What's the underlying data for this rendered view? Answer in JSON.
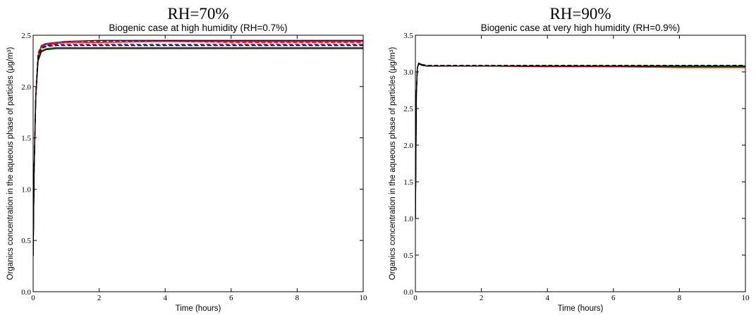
{
  "chart_data": [
    {
      "type": "line",
      "panel_title": "RH=70%",
      "title": "Biogenic case at high humidity (RH=0.7%)",
      "xlabel": "Time (hours)",
      "ylabel": "Organics concentration in the aqueous phase of particles (μg/m³)",
      "xlim": [
        0,
        10
      ],
      "ylim": [
        0,
        2.5
      ],
      "xticks": [
        "0",
        "2",
        "4",
        "6",
        "8",
        "10"
      ],
      "yticks": [
        "0.0",
        "0.5",
        "1.0",
        "1.5",
        "2.0",
        "2.5"
      ],
      "grid": false,
      "series": [
        {
          "color": "#0000cc",
          "dash": "solid",
          "x": [
            0,
            0.03,
            0.08,
            0.15,
            0.25,
            0.4,
            0.7,
            1,
            2,
            4,
            6,
            8,
            10
          ],
          "y": [
            0.35,
            1.2,
            1.9,
            2.3,
            2.4,
            2.42,
            2.43,
            2.44,
            2.45,
            2.45,
            2.45,
            2.45,
            2.45
          ]
        },
        {
          "color": "#ff0000",
          "dash": "solid",
          "x": [
            0,
            0.03,
            0.08,
            0.15,
            0.25,
            0.4,
            0.7,
            1,
            2,
            4,
            6,
            8,
            10
          ],
          "y": [
            0.35,
            1.2,
            1.9,
            2.3,
            2.39,
            2.41,
            2.42,
            2.43,
            2.43,
            2.44,
            2.44,
            2.44,
            2.44
          ]
        },
        {
          "color": "#008000",
          "dash": "solid",
          "x": [
            0,
            0.03,
            0.08,
            0.15,
            0.25,
            0.4,
            0.7,
            1,
            2,
            4,
            6,
            8,
            10
          ],
          "y": [
            0.35,
            1.2,
            1.9,
            2.28,
            2.35,
            2.37,
            2.38,
            2.38,
            2.38,
            2.38,
            2.38,
            2.38,
            2.38
          ]
        },
        {
          "color": "#000000",
          "dash": "solid",
          "x": [
            0,
            0.03,
            0.08,
            0.15,
            0.25,
            0.4,
            0.7,
            1,
            2,
            4,
            6,
            8,
            10
          ],
          "y": [
            0.35,
            1.2,
            1.9,
            2.25,
            2.34,
            2.36,
            2.37,
            2.37,
            2.37,
            2.37,
            2.37,
            2.37,
            2.37
          ]
        },
        {
          "color": "#ff0000",
          "dash": "dashed",
          "x": [
            0,
            0.03,
            0.08,
            0.15,
            0.25,
            0.4,
            0.7,
            1,
            2,
            4,
            6,
            8,
            10
          ],
          "y": [
            0.35,
            1.2,
            1.95,
            2.33,
            2.4,
            2.42,
            2.43,
            2.44,
            2.44,
            2.44,
            2.43,
            2.43,
            2.43
          ]
        },
        {
          "color": "#0000cc",
          "dash": "dashed",
          "x": [
            0,
            0.03,
            0.08,
            0.15,
            0.25,
            0.4,
            0.7,
            1,
            2,
            4,
            6,
            8,
            10
          ],
          "y": [
            0.35,
            1.2,
            1.9,
            2.3,
            2.38,
            2.4,
            2.41,
            2.41,
            2.41,
            2.41,
            2.41,
            2.41,
            2.41
          ]
        },
        {
          "color": "#000000",
          "dash": "dashed",
          "x": [
            0,
            0.03,
            0.08,
            0.15,
            0.25,
            0.4,
            0.7,
            1,
            2,
            4,
            6,
            8,
            10
          ],
          "y": [
            0.35,
            1.2,
            1.9,
            2.3,
            2.37,
            2.39,
            2.4,
            2.4,
            2.4,
            2.4,
            2.4,
            2.4,
            2.4
          ]
        }
      ]
    },
    {
      "type": "line",
      "panel_title": "RH=90%",
      "title": "Biogenic case at very high humidity (RH=0.9%)",
      "xlabel": "Time (hours)",
      "ylabel": "Organics concentration in the aqueous phase of particles (μg/m³)",
      "xlim": [
        0,
        10
      ],
      "ylim": [
        0,
        3.5
      ],
      "xticks": [
        "0",
        "2",
        "4",
        "6",
        "8",
        "10"
      ],
      "yticks": [
        "0.0",
        "0.5",
        "1.0",
        "1.5",
        "2.0",
        "2.5",
        "3.0",
        "3.5"
      ],
      "grid": false,
      "series": [
        {
          "color": "#0000cc",
          "dash": "solid",
          "x": [
            0,
            0.03,
            0.06,
            0.1,
            0.2,
            0.35,
            0.6,
            1,
            2,
            4,
            6,
            8,
            10
          ],
          "y": [
            1.0,
            2.7,
            3.05,
            3.12,
            3.1,
            3.08,
            3.08,
            3.08,
            3.08,
            3.08,
            3.08,
            3.08,
            3.08
          ]
        },
        {
          "color": "#008000",
          "dash": "solid",
          "x": [
            0,
            0.03,
            0.06,
            0.1,
            0.2,
            0.35,
            0.6,
            1,
            2,
            4,
            6,
            8,
            10
          ],
          "y": [
            1.0,
            2.7,
            3.05,
            3.11,
            3.09,
            3.08,
            3.08,
            3.08,
            3.08,
            3.08,
            3.07,
            3.07,
            3.07
          ]
        },
        {
          "color": "#ff0000",
          "dash": "solid",
          "x": [
            0,
            0.03,
            0.06,
            0.1,
            0.2,
            0.35,
            0.6,
            1,
            2,
            4,
            6,
            8,
            10
          ],
          "y": [
            1.0,
            2.7,
            3.05,
            3.11,
            3.09,
            3.08,
            3.08,
            3.08,
            3.08,
            3.07,
            3.07,
            3.06,
            3.06
          ]
        },
        {
          "color": "#000000",
          "dash": "dashed",
          "x": [
            0,
            0.03,
            0.06,
            0.1,
            0.2,
            0.35,
            0.6,
            1,
            2,
            4,
            6,
            8,
            10
          ],
          "y": [
            1.0,
            2.7,
            3.06,
            3.12,
            3.1,
            3.09,
            3.09,
            3.09,
            3.09,
            3.09,
            3.09,
            3.09,
            3.09
          ]
        },
        {
          "color": "#000000",
          "dash": "solid",
          "x": [
            0,
            0.03,
            0.06,
            0.1,
            0.2,
            0.35,
            0.6,
            1,
            2,
            4,
            6,
            8,
            10
          ],
          "y": [
            1.0,
            2.7,
            3.05,
            3.11,
            3.09,
            3.08,
            3.08,
            3.08,
            3.08,
            3.08,
            3.08,
            3.08,
            3.08
          ]
        }
      ]
    }
  ]
}
